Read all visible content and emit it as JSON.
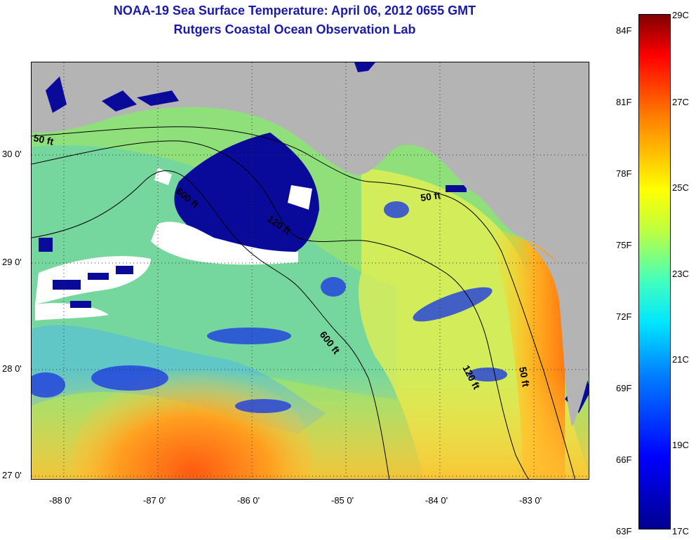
{
  "title": {
    "line1": "NOAA-19 Sea Surface Temperature:  April 06, 2012 0655 GMT",
    "line2": "Rutgers Coastal Ocean Observation Lab"
  },
  "map": {
    "x_ticks": [
      "-88 0'",
      "-87 0'",
      "-86 0'",
      "-85 0'",
      "-84 0'",
      "-83 0'"
    ],
    "y_ticks": [
      "30 0'",
      "29 0'",
      "28 0'",
      "27 0'"
    ],
    "contour_labels": [
      "50 ft",
      "600 ft",
      "120 ft",
      "600 ft",
      "50 ft",
      "120 ft",
      "50 ft"
    ]
  },
  "colorbar": {
    "fahrenheit": [
      "84F",
      "81F",
      "78F",
      "75F",
      "72F",
      "69F",
      "66F",
      "63F"
    ],
    "celsius": [
      "29C",
      "27C",
      "25C",
      "23C",
      "21C",
      "19C",
      "17C"
    ]
  },
  "colors": {
    "title": "#1a1aa8",
    "land": "#b4b4b4",
    "water_base": "#8fe07a",
    "cloud": "#ffffff",
    "cold": "#00008f"
  }
}
